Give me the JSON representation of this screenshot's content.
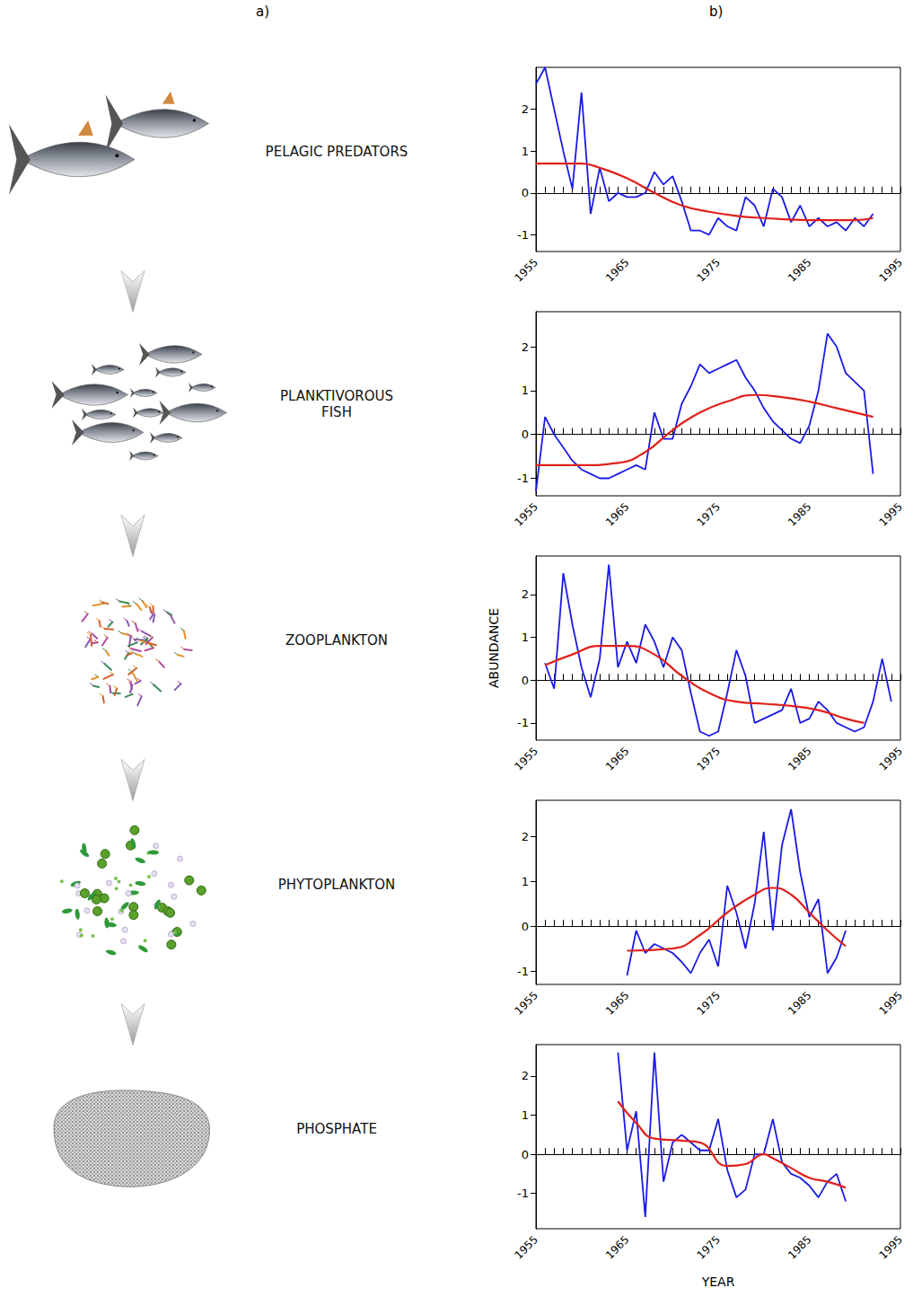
{
  "panel_labels": [
    "a)",
    "b)"
  ],
  "chart_data": [
    {
      "type": "line",
      "title": "PELAGIC PREDATORS",
      "grid": false,
      "xlim": [
        1955,
        1995
      ],
      "xticks": [
        1955,
        1965,
        1975,
        1985,
        1995
      ],
      "ylim": [
        -1.4,
        3.0
      ],
      "yticks": [
        -1,
        0,
        1,
        2
      ],
      "series": [
        {
          "type": "line",
          "color": "#1a1ae6",
          "x": [
            1955,
            1956,
            1957,
            1958,
            1959,
            1960,
            1961,
            1962,
            1963,
            1964,
            1965,
            1966,
            1967,
            1968,
            1969,
            1970,
            1971,
            1972,
            1973,
            1974,
            1975,
            1976,
            1977,
            1978,
            1979,
            1980,
            1981,
            1982,
            1983,
            1984,
            1985,
            1986,
            1987,
            1988,
            1989,
            1990,
            1991,
            1992
          ],
          "values": [
            2.6,
            3.0,
            2.0,
            1.0,
            0.1,
            2.4,
            -0.5,
            0.6,
            -0.2,
            0.0,
            -0.1,
            -0.1,
            0.0,
            0.5,
            0.2,
            0.4,
            -0.2,
            -0.9,
            -0.9,
            -1.0,
            -0.6,
            -0.8,
            -0.9,
            -0.1,
            -0.3,
            -0.8,
            0.1,
            -0.1,
            -0.7,
            -0.3,
            -0.8,
            -0.6,
            -0.8,
            -0.7,
            -0.9,
            -0.6,
            -0.8,
            -0.5
          ]
        },
        {
          "type": "spline",
          "color": "#e0201a",
          "x": [
            1955,
            1960,
            1962,
            1965,
            1968,
            1971,
            1974,
            1977,
            1980,
            1985,
            1990,
            1992
          ],
          "values": [
            0.7,
            0.7,
            0.6,
            0.35,
            0.0,
            -0.3,
            -0.45,
            -0.55,
            -0.6,
            -0.65,
            -0.65,
            -0.6
          ]
        }
      ]
    },
    {
      "type": "line",
      "title": "PLANKTIVOROUS FISH",
      "grid": false,
      "xlim": [
        1955,
        1995
      ],
      "xticks": [
        1955,
        1965,
        1975,
        1985,
        1995
      ],
      "ylim": [
        -1.4,
        2.8
      ],
      "yticks": [
        -1,
        0,
        1,
        2
      ],
      "series": [
        {
          "type": "line",
          "color": "#1a1ae6",
          "x": [
            1955,
            1956,
            1957,
            1958,
            1959,
            1960,
            1961,
            1962,
            1963,
            1964,
            1965,
            1966,
            1967,
            1968,
            1969,
            1970,
            1971,
            1972,
            1973,
            1974,
            1975,
            1976,
            1977,
            1978,
            1979,
            1980,
            1981,
            1982,
            1983,
            1984,
            1985,
            1986,
            1987,
            1988,
            1989,
            1990,
            1991,
            1992
          ],
          "values": [
            -1.3,
            0.4,
            0.0,
            -0.3,
            -0.6,
            -0.8,
            -0.9,
            -1.0,
            -1.0,
            -0.9,
            -0.8,
            -0.7,
            -0.8,
            0.5,
            -0.1,
            -0.1,
            0.7,
            1.1,
            1.6,
            1.4,
            1.5,
            1.6,
            1.7,
            1.3,
            1.0,
            0.6,
            0.3,
            0.1,
            -0.1,
            -0.2,
            0.2,
            1.0,
            2.3,
            2.0,
            1.4,
            1.2,
            1.0,
            -0.9
          ]
        },
        {
          "type": "spline",
          "color": "#e0201a",
          "x": [
            1955,
            1960,
            1964,
            1967,
            1970,
            1973,
            1976,
            1979,
            1982,
            1985,
            1988,
            1992
          ],
          "values": [
            -0.7,
            -0.7,
            -0.65,
            -0.4,
            0.1,
            0.5,
            0.75,
            0.9,
            0.85,
            0.75,
            0.6,
            0.4
          ]
        }
      ]
    },
    {
      "type": "line",
      "title": "ZOOPLANKTON",
      "ylabel": "ABUNDANCE",
      "grid": false,
      "xlim": [
        1955,
        1995
      ],
      "xticks": [
        1955,
        1965,
        1975,
        1985,
        1995
      ],
      "ylim": [
        -1.4,
        2.9
      ],
      "yticks": [
        -1,
        0,
        1,
        2
      ],
      "series": [
        {
          "type": "line",
          "color": "#1a1ae6",
          "x": [
            1956,
            1957,
            1958,
            1959,
            1960,
            1961,
            1962,
            1963,
            1964,
            1965,
            1966,
            1967,
            1968,
            1969,
            1970,
            1971,
            1972,
            1973,
            1974,
            1975,
            1976,
            1977,
            1978,
            1979,
            1980,
            1981,
            1982,
            1983,
            1984,
            1985,
            1986,
            1987,
            1988,
            1989,
            1990,
            1991,
            1992,
            1993,
            1994
          ],
          "values": [
            0.4,
            -0.2,
            2.5,
            1.3,
            0.3,
            -0.4,
            0.5,
            2.7,
            0.3,
            0.9,
            0.4,
            1.3,
            0.9,
            0.3,
            1.0,
            0.7,
            -0.3,
            -1.2,
            -1.3,
            -1.2,
            -0.3,
            0.7,
            0.1,
            -1.0,
            -0.9,
            -0.8,
            -0.7,
            -0.2,
            -1.0,
            -0.9,
            -0.5,
            -0.7,
            -1.0,
            -1.1,
            -1.2,
            -1.1,
            -0.5,
            0.5,
            -0.5
          ]
        },
        {
          "type": "spline",
          "color": "#e0201a",
          "x": [
            1956,
            1959,
            1962,
            1965,
            1968,
            1971,
            1974,
            1977,
            1980,
            1983,
            1986,
            1989,
            1991
          ],
          "values": [
            0.35,
            0.6,
            0.8,
            0.8,
            0.6,
            0.1,
            -0.3,
            -0.5,
            -0.55,
            -0.6,
            -0.7,
            -0.9,
            -1.0
          ]
        }
      ]
    },
    {
      "type": "line",
      "title": "PHYTOPLANKTON",
      "grid": false,
      "xlim": [
        1955,
        1995
      ],
      "xticks": [
        1955,
        1965,
        1975,
        1985,
        1995
      ],
      "ylim": [
        -1.3,
        2.8
      ],
      "yticks": [
        -1,
        0,
        1,
        2
      ],
      "series": [
        {
          "type": "line",
          "color": "#1a1ae6",
          "x": [
            1965,
            1966,
            1967,
            1968,
            1969,
            1970,
            1971,
            1972,
            1973,
            1974,
            1975,
            1976,
            1977,
            1978,
            1979,
            1980,
            1981,
            1982,
            1983,
            1984,
            1985,
            1986,
            1987,
            1988,
            1989
          ],
          "values": [
            -1.1,
            -0.1,
            -0.6,
            -0.4,
            -0.5,
            -0.6,
            -0.8,
            -1.05,
            -0.6,
            -0.3,
            -0.9,
            0.9,
            0.3,
            -0.5,
            0.5,
            2.1,
            -0.1,
            1.8,
            2.6,
            1.2,
            0.2,
            0.6,
            -1.05,
            -0.7,
            -0.1
          ]
        },
        {
          "type": "spline",
          "color": "#e0201a",
          "x": [
            1965,
            1970,
            1973,
            1976,
            1979,
            1981,
            1983,
            1985,
            1987,
            1989
          ],
          "values": [
            -0.55,
            -0.5,
            -0.2,
            0.3,
            0.7,
            0.85,
            0.7,
            0.3,
            -0.1,
            -0.45
          ]
        }
      ]
    },
    {
      "type": "line",
      "title": "PHOSPHATE",
      "xlabel": "YEAR",
      "grid": false,
      "xlim": [
        1955,
        1995
      ],
      "xticks": [
        1955,
        1965,
        1975,
        1985,
        1995
      ],
      "ylim": [
        -1.9,
        2.8
      ],
      "yticks": [
        -1,
        0,
        1,
        2
      ],
      "series": [
        {
          "type": "line",
          "color": "#1a1ae6",
          "x": [
            1964,
            1965,
            1966,
            1967,
            1968,
            1969,
            1970,
            1971,
            1972,
            1973,
            1974,
            1975,
            1976,
            1977,
            1978,
            1979,
            1980,
            1981,
            1982,
            1983,
            1984,
            1985,
            1986,
            1987,
            1988,
            1989
          ],
          "values": [
            2.6,
            0.1,
            1.1,
            -1.6,
            2.6,
            -0.7,
            0.3,
            0.5,
            0.3,
            0.1,
            0.1,
            0.9,
            -0.4,
            -1.1,
            -0.9,
            0.0,
            0.0,
            0.9,
            -0.2,
            -0.5,
            -0.6,
            -0.8,
            -1.1,
            -0.7,
            -0.5,
            -1.2
          ]
        },
        {
          "type": "spline",
          "color": "#e0201a",
          "x": [
            1964,
            1966,
            1968,
            1971,
            1973,
            1976,
            1978,
            1980,
            1981,
            1983,
            1985,
            1987,
            1989
          ],
          "values": [
            1.35,
            0.8,
            0.4,
            0.35,
            0.3,
            -0.3,
            -0.25,
            0.0,
            -0.1,
            -0.35,
            -0.6,
            -0.7,
            -0.85
          ]
        }
      ]
    }
  ]
}
